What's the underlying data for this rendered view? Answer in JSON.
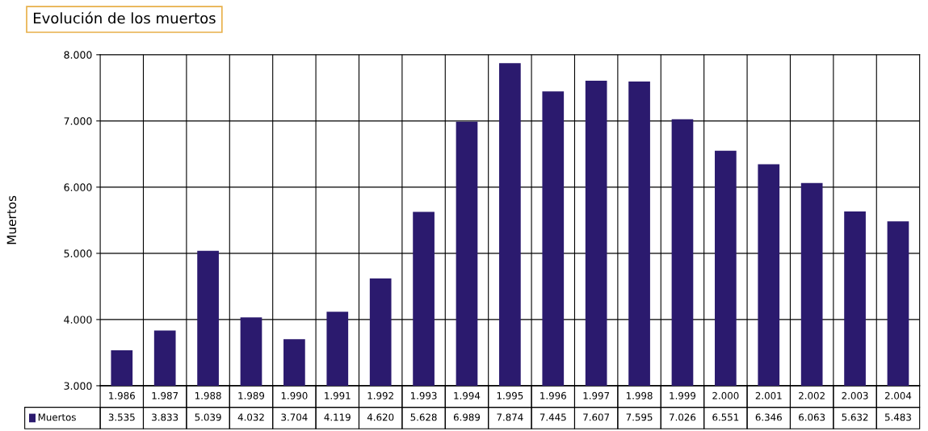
{
  "chart_data": {
    "type": "bar",
    "title": "Evolución de los muertos",
    "ylabel": "Muertos",
    "categories": [
      "1.986",
      "1.987",
      "1.988",
      "1.989",
      "1.990",
      "1.991",
      "1.992",
      "1.993",
      "1.994",
      "1.995",
      "1.996",
      "1.997",
      "1.998",
      "1.999",
      "2.000",
      "2.001",
      "2.002",
      "2.003",
      "2.004"
    ],
    "series": [
      {
        "name": "Muertos",
        "color": "#2b1a6e",
        "values": [
          3535,
          3833,
          5039,
          4032,
          3704,
          4119,
          4620,
          5628,
          6989,
          7874,
          7445,
          7607,
          7595,
          7026,
          6551,
          6346,
          6063,
          5632,
          5483
        ],
        "value_labels": [
          "3.535",
          "3.833",
          "5.039",
          "4.032",
          "3.704",
          "4.119",
          "4.620",
          "5.628",
          "6.989",
          "7.874",
          "7.445",
          "7.607",
          "7.595",
          "7.026",
          "6.551",
          "6.346",
          "6.063",
          "5.632",
          "5.483"
        ]
      }
    ],
    "ylim": [
      3000,
      8000
    ],
    "yticks": [
      {
        "value": 3000,
        "label": "3.000"
      },
      {
        "value": 4000,
        "label": "4.000"
      },
      {
        "value": 5000,
        "label": "5.000"
      },
      {
        "value": 6000,
        "label": "6.000"
      },
      {
        "value": 7000,
        "label": "7.000"
      },
      {
        "value": 8000,
        "label": "8.000"
      }
    ],
    "grid": true,
    "legend": "bottom left"
  }
}
